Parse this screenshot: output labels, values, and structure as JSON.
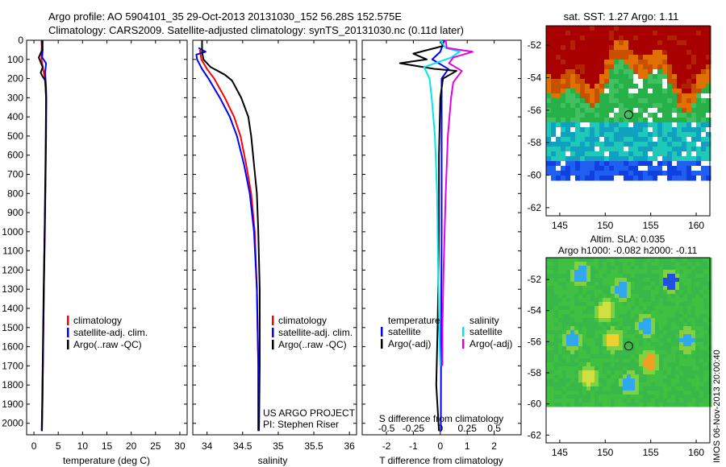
{
  "header": {
    "title_line1": "Argo profile: AO 5904101_35 29-Oct-2013 20131030_152 56.28S 152.575E",
    "title_line2": "Climatology: CARS2009. Satellite-adjusted climatology: synTS_20131030.nc (0.11d later)"
  },
  "colors": {
    "climatology": "#ff0000",
    "satellite": "#0000ff",
    "argo": "#000000",
    "t_satellite": "#0000ff",
    "s_satellite": "#00e5ee",
    "s_argo": "#e600e6"
  },
  "footer_text": "IMOS 06-Nov-2013 20:00:40",
  "chart_data": [
    {
      "type": "line",
      "name": "temperature-profile",
      "xlabel": "temperature (deg C)",
      "ylabel": "",
      "xlim": [
        -1.5,
        31.5
      ],
      "ylim": [
        2060,
        0
      ],
      "xticks": [
        0,
        5,
        10,
        15,
        20,
        25,
        30
      ],
      "yticks": [
        0,
        100,
        200,
        300,
        400,
        500,
        600,
        700,
        800,
        900,
        1000,
        1100,
        1200,
        1300,
        1400,
        1500,
        1600,
        1700,
        1800,
        1900,
        2000
      ],
      "legend": [
        "climatology",
        "satellite-adj. clim.",
        "Argo(..raw -QC)"
      ],
      "series": [
        {
          "name": "climatology",
          "color": "#ff0000",
          "points": [
            [
              1.6,
              0
            ],
            [
              1.6,
              50
            ],
            [
              1.55,
              100
            ],
            [
              1.9,
              150
            ],
            [
              2.25,
              200
            ],
            [
              2.4,
              250
            ],
            [
              2.5,
              300
            ],
            [
              2.45,
              500
            ],
            [
              2.4,
              700
            ],
            [
              2.2,
              1000
            ],
            [
              2.05,
              1300
            ],
            [
              1.9,
              1600
            ],
            [
              1.75,
              1900
            ],
            [
              1.65,
              2040
            ]
          ]
        },
        {
          "name": "satellite-adj. clim.",
          "color": "#0000ff",
          "points": [
            [
              1.8,
              0
            ],
            [
              1.8,
              50
            ],
            [
              1.7,
              90
            ],
            [
              2.5,
              120
            ],
            [
              2.3,
              170
            ],
            [
              2.5,
              250
            ],
            [
              2.55,
              300
            ],
            [
              2.5,
              500
            ],
            [
              2.4,
              700
            ],
            [
              2.25,
              1000
            ],
            [
              2.05,
              1300
            ],
            [
              1.9,
              1600
            ],
            [
              1.75,
              1900
            ],
            [
              1.65,
              2040
            ]
          ]
        },
        {
          "name": "Argo(..raw -QC)",
          "color": "#000000",
          "points": [
            [
              1.6,
              0
            ],
            [
              1.7,
              50
            ],
            [
              1.0,
              90
            ],
            [
              1.3,
              110
            ],
            [
              1.8,
              140
            ],
            [
              1.4,
              170
            ],
            [
              1.8,
              190
            ],
            [
              2.35,
              210
            ],
            [
              2.5,
              300
            ],
            [
              2.45,
              500
            ],
            [
              2.35,
              700
            ],
            [
              2.2,
              1000
            ],
            [
              2.0,
              1300
            ],
            [
              1.85,
              1600
            ],
            [
              1.7,
              1900
            ],
            [
              1.6,
              2040
            ]
          ]
        }
      ]
    },
    {
      "type": "line",
      "name": "salinity-profile",
      "xlabel": "salinity",
      "ylabel": "",
      "xlim": [
        33.8,
        36.1
      ],
      "ylim": [
        2060,
        0
      ],
      "xticks": [
        34,
        34.5,
        35,
        35.5,
        36
      ],
      "legend": [
        "climatology",
        "satellite-adj. clim.",
        "Argo(..raw -QC)"
      ],
      "annotations": [
        "US ARGO PROJECT",
        "PI: Stephen Riser"
      ],
      "series": [
        {
          "name": "climatology",
          "color": "#ff0000",
          "points": [
            [
              33.9,
              50
            ],
            [
              33.92,
              100
            ],
            [
              34.0,
              150
            ],
            [
              34.1,
              200
            ],
            [
              34.25,
              300
            ],
            [
              34.38,
              400
            ],
            [
              34.47,
              500
            ],
            [
              34.55,
              650
            ],
            [
              34.62,
              800
            ],
            [
              34.67,
              1000
            ],
            [
              34.7,
              1300
            ],
            [
              34.72,
              1700
            ],
            [
              34.72,
              2040
            ]
          ]
        },
        {
          "name": "satellite-adj. clim.",
          "color": "#0000ff",
          "points": [
            [
              33.88,
              40
            ],
            [
              33.98,
              60
            ],
            [
              33.85,
              75
            ],
            [
              33.86,
              100
            ],
            [
              33.93,
              150
            ],
            [
              34.02,
              200
            ],
            [
              34.18,
              300
            ],
            [
              34.32,
              400
            ],
            [
              34.42,
              500
            ],
            [
              34.52,
              650
            ],
            [
              34.6,
              800
            ],
            [
              34.66,
              1000
            ],
            [
              34.7,
              1300
            ],
            [
              34.72,
              1700
            ],
            [
              34.72,
              2040
            ]
          ]
        },
        {
          "name": "Argo(..raw -QC)",
          "color": "#000000",
          "points": [
            [
              33.93,
              0
            ],
            [
              33.93,
              60
            ],
            [
              33.95,
              100
            ],
            [
              34.05,
              140
            ],
            [
              34.25,
              180
            ],
            [
              34.35,
              210
            ],
            [
              34.48,
              300
            ],
            [
              34.53,
              350
            ],
            [
              34.58,
              400
            ],
            [
              34.62,
              500
            ],
            [
              34.66,
              650
            ],
            [
              34.7,
              800
            ],
            [
              34.72,
              1000
            ],
            [
              34.74,
              1300
            ],
            [
              34.74,
              1700
            ],
            [
              34.73,
              2040
            ]
          ]
        }
      ]
    },
    {
      "type": "line",
      "name": "difference-profile",
      "xlabel": "T difference from climatology",
      "xlabel_top": "S difference from climatology",
      "ylabel": "",
      "xlim": [
        -2.9,
        3.0
      ],
      "ylim": [
        2060,
        0
      ],
      "xticks": [
        -2,
        -1,
        0,
        1,
        2
      ],
      "xticks_s": [
        -0.5,
        -0.25,
        0,
        0.25,
        0.5
      ],
      "s_to_t_scale": 4,
      "legend_headers": [
        "temperature",
        "salinity"
      ],
      "legend": [
        "satellite",
        "Argo(-adj)",
        "satellite",
        "Argo(-adj)"
      ],
      "series": [
        {
          "name": "satellite",
          "variable": "temperature",
          "color": "#0000ff",
          "points": [
            [
              0.15,
              0
            ],
            [
              0.0,
              60
            ],
            [
              -0.3,
              100
            ],
            [
              0.3,
              150
            ],
            [
              0.05,
              200
            ],
            [
              0.05,
              300
            ],
            [
              0.05,
              600
            ],
            [
              0.05,
              1000
            ],
            [
              0.03,
              1500
            ],
            [
              0.02,
              2040
            ]
          ]
        },
        {
          "name": "Argo(-adj)",
          "variable": "temperature",
          "color": "#000000",
          "points": [
            [
              0.0,
              0
            ],
            [
              0.1,
              30
            ],
            [
              -1.0,
              70
            ],
            [
              -0.5,
              100
            ],
            [
              -1.5,
              120
            ],
            [
              -0.2,
              150
            ],
            [
              0.6,
              160
            ],
            [
              0.1,
              200
            ],
            [
              0.0,
              300
            ],
            [
              -0.05,
              600
            ],
            [
              -0.05,
              1000
            ],
            [
              -0.1,
              1500
            ],
            [
              -0.15,
              1800
            ],
            [
              -0.05,
              2040
            ]
          ]
        },
        {
          "name": "satellite",
          "variable": "salinity",
          "color": "#00e5ee",
          "points": [
            [
              0.0,
              0
            ],
            [
              0.05,
              40
            ],
            [
              0.18,
              60
            ],
            [
              0.1,
              90
            ],
            [
              -0.15,
              140
            ],
            [
              -0.1,
              200
            ],
            [
              -0.08,
              300
            ],
            [
              -0.05,
              500
            ],
            [
              -0.03,
              800
            ],
            [
              -0.02,
              1200
            ],
            [
              -0.01,
              1500
            ],
            [
              0.0,
              1700
            ]
          ]
        },
        {
          "name": "Argo(-adj)",
          "variable": "salinity",
          "color": "#e600e6",
          "points": [
            [
              0.05,
              0
            ],
            [
              0.06,
              40
            ],
            [
              0.3,
              60
            ],
            [
              0.12,
              90
            ],
            [
              0.08,
              120
            ],
            [
              0.2,
              160
            ],
            [
              0.12,
              220
            ],
            [
              0.1,
              300
            ],
            [
              0.07,
              500
            ],
            [
              0.05,
              800
            ],
            [
              0.03,
              1200
            ],
            [
              0.02,
              1500
            ],
            [
              0.02,
              1700
            ]
          ]
        }
      ]
    },
    {
      "type": "heatmap",
      "name": "sst-map",
      "title": "sat. SST: 1.27 Argo: 1.11",
      "xlim": [
        143.5,
        161.5
      ],
      "ylim": [
        -62.5,
        -50.8
      ],
      "xticks": [
        145,
        150,
        155,
        160
      ],
      "yticks": [
        -52,
        -54,
        -56,
        -58,
        -60,
        -62
      ],
      "data_extent": [
        -60.2,
        -50.8
      ],
      "profile_location": [
        152.575,
        -56.28
      ]
    },
    {
      "type": "heatmap",
      "name": "sla-map",
      "title_line1": "Altim. SLA: 0.035",
      "title_line2": "Argo h1000: -0.082 h2000: -0.11",
      "xlim": [
        143.5,
        161.5
      ],
      "ylim": [
        -62.5,
        -50.6
      ],
      "xticks": [
        145,
        150,
        155,
        160
      ],
      "yticks": [
        -52,
        -54,
        -56,
        -58,
        -60,
        -62
      ],
      "data_extent": [
        -60.0,
        -50.6
      ],
      "profile_location": [
        152.575,
        -56.28
      ]
    }
  ]
}
